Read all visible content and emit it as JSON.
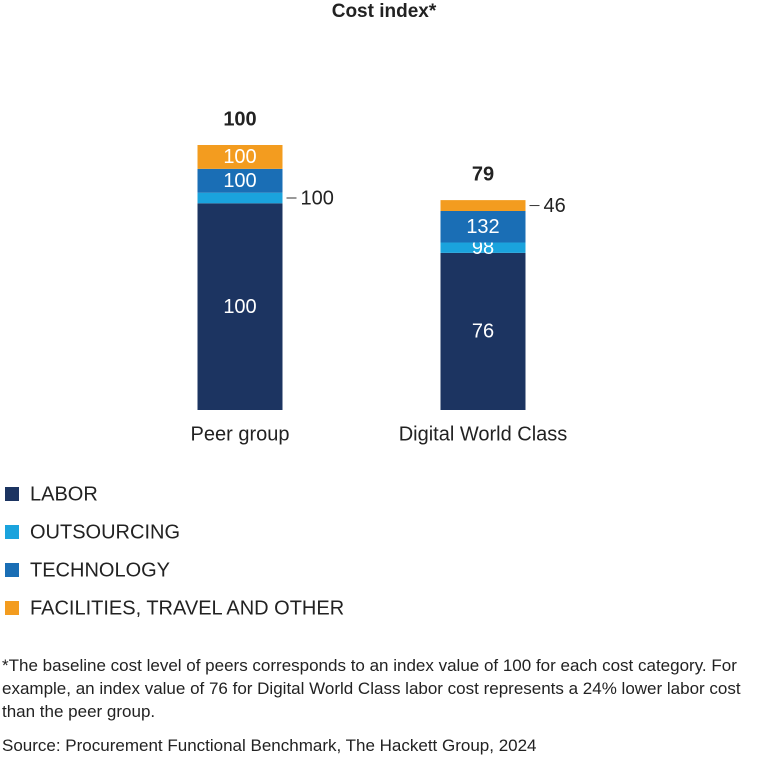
{
  "chart_data": {
    "type": "stacked_bar",
    "title": "Cost index*",
    "categories": [
      "Peer group",
      "Digital World Class"
    ],
    "totals": [
      100,
      79
    ],
    "ylim": [
      0,
      100
    ],
    "series": [
      {
        "name": "LABOR",
        "color": "#1c3461",
        "values": [
          78,
          59.3
        ],
        "index_values": [
          100,
          76
        ]
      },
      {
        "name": "OUTSOURCING",
        "color": "#1aa3dd",
        "values": [
          4,
          3.9
        ],
        "index_values": [
          100,
          98
        ]
      },
      {
        "name": "TECHNOLOGY",
        "color": "#1a6eb5",
        "values": [
          9,
          11.9
        ],
        "index_values": [
          100,
          132
        ]
      },
      {
        "name": "FACILITIES, TRAVEL AND OTHER",
        "color": "#f39c1f",
        "values": [
          9,
          4.1
        ],
        "index_values": [
          100,
          46
        ]
      }
    ],
    "footnote": "*The baseline cost level of peers corresponds to an index value of 100 for each cost category. For example, an index value of 76 for Digital World Class labor cost represents a 24% lower labor cost than the peer group.",
    "source": "Source: Procurement Functional Benchmark, The Hackett Group, 2024"
  }
}
